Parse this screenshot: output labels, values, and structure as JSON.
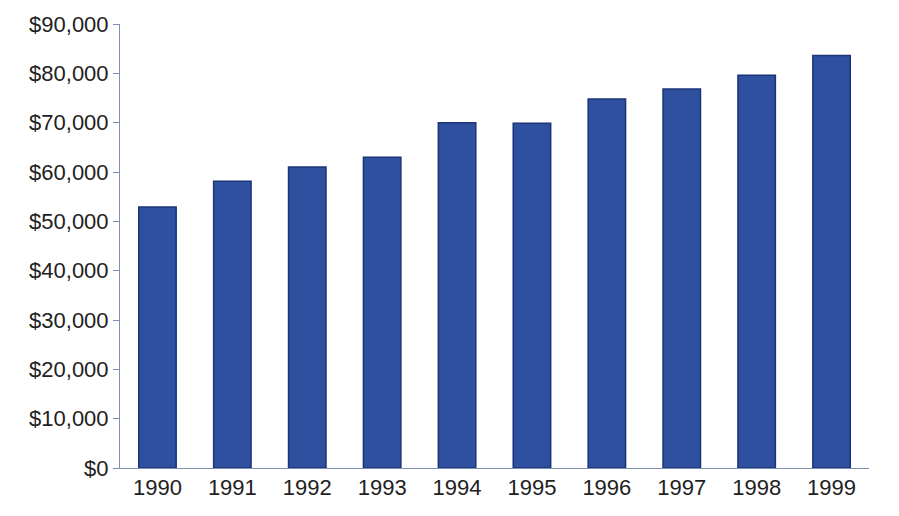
{
  "chart_data": {
    "type": "bar",
    "categories": [
      "1990",
      "1991",
      "1992",
      "1993",
      "1994",
      "1995",
      "1996",
      "1997",
      "1998",
      "1999"
    ],
    "values": [
      52900,
      58100,
      61000,
      63000,
      70000,
      69900,
      74800,
      76800,
      79600,
      83600
    ],
    "color": "#2f4f9f",
    "ylim": [
      0,
      90000
    ],
    "yticks": [
      {
        "value": 0,
        "label": "$0"
      },
      {
        "value": 10000,
        "label": "$10,000"
      },
      {
        "value": 20000,
        "label": "$20,000"
      },
      {
        "value": 30000,
        "label": "$30,000"
      },
      {
        "value": 40000,
        "label": "$40,000"
      },
      {
        "value": 50000,
        "label": "$50,000"
      },
      {
        "value": 60000,
        "label": "$60,000"
      },
      {
        "value": 70000,
        "label": "$70,000"
      },
      {
        "value": 80000,
        "label": "$80,000"
      },
      {
        "value": 90000,
        "label": "$90,000"
      }
    ],
    "grid": false
  }
}
